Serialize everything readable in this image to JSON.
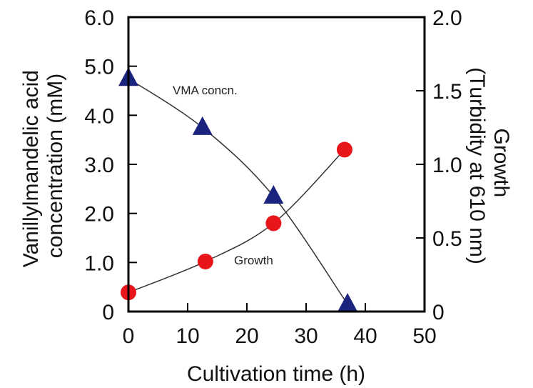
{
  "chart_data": {
    "type": "scatter",
    "xlabel": "Cultivation time (h)",
    "ylabel_lines": [
      "Vanillylmandelic acid",
      "concentration (mM)"
    ],
    "y2label_lines": [
      "Growth",
      "(Turbidity at 610 nm)"
    ],
    "xlim": [
      0,
      50
    ],
    "ylim": [
      0,
      6.0
    ],
    "y2lim": [
      0,
      2.0
    ],
    "x_ticks": [
      0,
      10,
      20,
      30,
      40,
      50
    ],
    "x_tick_labels": [
      "0",
      "10",
      "20",
      "30",
      "40",
      "50"
    ],
    "y_ticks": [
      0,
      1,
      2,
      3,
      4,
      5,
      6
    ],
    "y_tick_labels": [
      "0",
      "1.0",
      "2.0",
      "3.0",
      "4.0",
      "5.0",
      "6.0"
    ],
    "y2_ticks": [
      0,
      0.5,
      1.0,
      1.5,
      2.0
    ],
    "y2_tick_labels": [
      "0",
      "0.5",
      "1.0",
      "1.5",
      "2.0"
    ],
    "grid": false,
    "series": [
      {
        "name": "VMA concn.",
        "axis": "left",
        "marker": "triangle",
        "color": "#1a237e",
        "x": [
          0,
          12.5,
          24.5,
          37
        ],
        "values": [
          4.75,
          3.75,
          2.35,
          0.15
        ]
      },
      {
        "name": "Growth",
        "axis": "right",
        "marker": "circle",
        "color": "#e8151b",
        "x": [
          0,
          13,
          24.5,
          36.5
        ],
        "values": [
          0.13,
          0.34,
          0.6,
          1.1
        ]
      }
    ]
  }
}
